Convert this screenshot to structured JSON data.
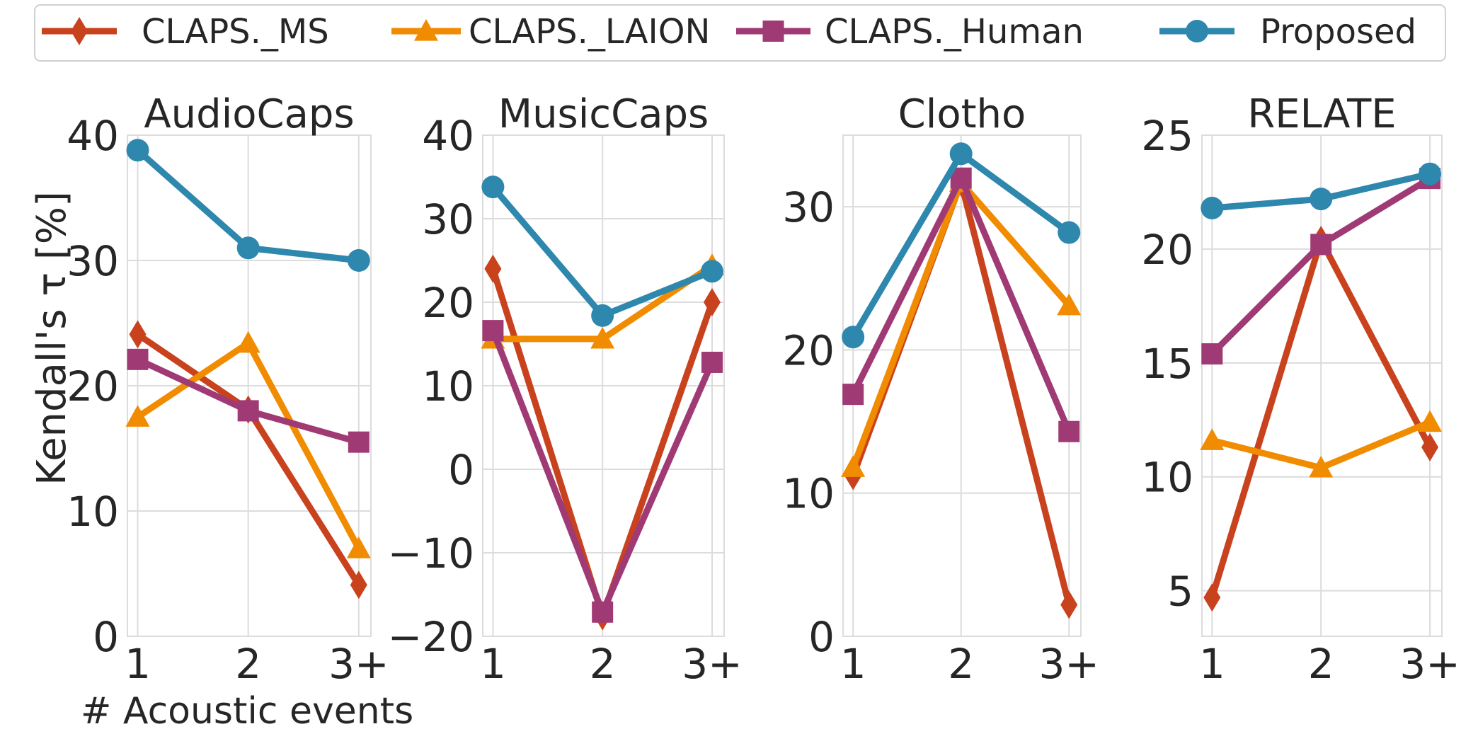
{
  "legend": {
    "placement": "top",
    "entries": [
      {
        "name": "CLAPS._MS",
        "color": "#c9421e",
        "marker": "diamond"
      },
      {
        "name": "CLAPS._LAION",
        "color": "#f18b00",
        "marker": "triangle"
      },
      {
        "name": "CLAPS._Human",
        "color": "#a03a74",
        "marker": "square"
      },
      {
        "name": "Proposed",
        "color": "#2e87ad",
        "marker": "circle"
      }
    ]
  },
  "ylabel": "Kendall's τ [%]",
  "xlabel": "# Acoustic events",
  "chart_data": [
    {
      "type": "line",
      "title": "AudioCaps",
      "categories": [
        "1",
        "2",
        "3+"
      ],
      "ylim": [
        0,
        40
      ],
      "yticks": [
        "0",
        "10",
        "20",
        "30",
        "40"
      ],
      "ytick_values": [
        0,
        10,
        20,
        30,
        40
      ],
      "grid": true,
      "series": [
        {
          "name": "CLAPS._MS",
          "values": [
            24.1,
            18.1,
            4.1
          ]
        },
        {
          "name": "CLAPS._LAION",
          "values": [
            17.5,
            23.4,
            7.0
          ]
        },
        {
          "name": "CLAPS._Human",
          "values": [
            22.1,
            18.0,
            15.5
          ]
        },
        {
          "name": "Proposed",
          "values": [
            38.8,
            31.0,
            30.0
          ]
        }
      ]
    },
    {
      "type": "line",
      "title": "MusicCaps",
      "categories": [
        "1",
        "2",
        "3+"
      ],
      "ylim": [
        -20,
        40
      ],
      "yticks": [
        "−20",
        "−10",
        "0",
        "10",
        "20",
        "30",
        "40"
      ],
      "ytick_values": [
        -20,
        -10,
        0,
        10,
        20,
        30,
        40
      ],
      "grid": true,
      "series": [
        {
          "name": "CLAPS._MS",
          "values": [
            24.0,
            -17.6,
            20.0
          ]
        },
        {
          "name": "CLAPS._LAION",
          "values": [
            15.6,
            15.6,
            24.4
          ]
        },
        {
          "name": "CLAPS._Human",
          "values": [
            16.6,
            -17.1,
            12.8
          ]
        },
        {
          "name": "Proposed",
          "values": [
            33.8,
            18.4,
            23.7
          ]
        }
      ]
    },
    {
      "type": "line",
      "title": "Clotho",
      "categories": [
        "1",
        "2",
        "3+"
      ],
      "ylim": [
        0,
        35
      ],
      "yticks": [
        "0",
        "10",
        "20",
        "30"
      ],
      "ytick_values": [
        0,
        10,
        20,
        30
      ],
      "grid": true,
      "series": [
        {
          "name": "CLAPS._MS",
          "values": [
            11.2,
            31.7,
            2.2
          ]
        },
        {
          "name": "CLAPS._LAION",
          "values": [
            11.8,
            31.7,
            23.1
          ]
        },
        {
          "name": "CLAPS._Human",
          "values": [
            16.9,
            32.0,
            14.3
          ]
        },
        {
          "name": "Proposed",
          "values": [
            20.9,
            33.7,
            28.2
          ]
        }
      ]
    },
    {
      "type": "line",
      "title": "RELATE",
      "categories": [
        "1",
        "2",
        "3+"
      ],
      "ylim": [
        3,
        25
      ],
      "yticks": [
        "5",
        "10",
        "15",
        "20",
        "25"
      ],
      "ytick_values": [
        5,
        10,
        15,
        20,
        25
      ],
      "grid": true,
      "series": [
        {
          "name": "CLAPS._MS",
          "values": [
            4.7,
            20.4,
            11.3
          ]
        },
        {
          "name": "CLAPS._LAION",
          "values": [
            11.6,
            10.4,
            12.4
          ]
        },
        {
          "name": "CLAPS._Human",
          "values": [
            15.4,
            20.2,
            23.1
          ]
        },
        {
          "name": "Proposed",
          "values": [
            21.8,
            22.2,
            23.3
          ]
        }
      ]
    }
  ]
}
